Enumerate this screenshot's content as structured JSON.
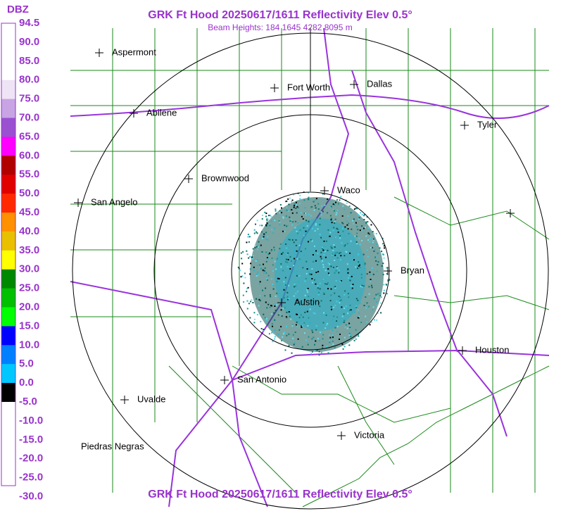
{
  "header": {
    "title": "GRK Ft Hood 20250617/1611 Reflectivity Elev 0.5°",
    "subtitle": "Beam Heights: 184 1645 4282 8095 m",
    "footer": "GRK Ft Hood 20250617/1611 Reflectivity Elev 0.5°"
  },
  "legend": {
    "unit": "DBZ",
    "labels": [
      "94.5",
      "90.0",
      "85.0",
      "80.0",
      "75.0",
      "70.0",
      "65.0",
      "60.0",
      "55.0",
      "50.0",
      "45.0",
      "40.0",
      "35.0",
      "30.0",
      "25.0",
      "20.0",
      "15.0",
      "10.0",
      "5.0",
      "0.0",
      "-5.0",
      "-10.0",
      "-15.0",
      "-20.0",
      "-25.0",
      "-30.0"
    ],
    "colors": [
      "#ffffff",
      "#ffffff",
      "#ffffff",
      "#eee4f6",
      "#c8a4e4",
      "#9a50d0",
      "#ff00ff",
      "#b00000",
      "#e00000",
      "#ff2800",
      "#ff9000",
      "#e8c000",
      "#ffff00",
      "#008800",
      "#00c000",
      "#00ff00",
      "#0000ff",
      "#0080ff",
      "#00c8ff",
      "#000000",
      "#ffffff",
      "#ffffff",
      "#ffffff",
      "#ffffff",
      "#ffffff"
    ]
  },
  "cities": [
    "Aspermont",
    "Fort Worth",
    "Dallas",
    "Abilene",
    "Tyler",
    "Brownwood",
    "Waco",
    "San Angelo",
    "Bryan",
    "Austin",
    "Houston",
    "San Antonio",
    "Uvalde",
    "Victoria",
    "Piedras Negras"
  ]
}
